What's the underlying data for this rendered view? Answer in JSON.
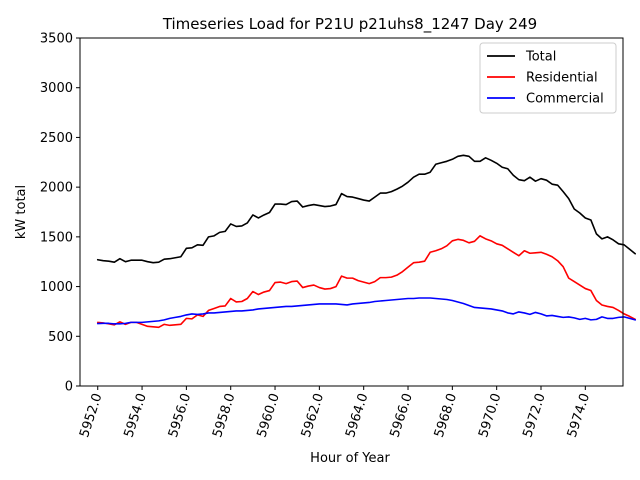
{
  "chart_data": {
    "type": "line",
    "title": "Timeseries Load for P21U p21uhs8_1247  Day 249",
    "xlabel": "Hour of Year",
    "ylabel": "kW total",
    "xlim": [
      5951.2,
      5975.7
    ],
    "ylim": [
      0,
      3500
    ],
    "x_start": 5952.0,
    "x_step": 0.25,
    "xticks": [
      5952,
      5954,
      5956,
      5958,
      5960,
      5962,
      5964,
      5966,
      5968,
      5970,
      5972,
      5974
    ],
    "xtick_labels": [
      "5952.0",
      "5954.0",
      "5956.0",
      "5958.0",
      "5960.0",
      "5962.0",
      "5964.0",
      "5966.0",
      "5968.0",
      "5970.0",
      "5972.0",
      "5974.0"
    ],
    "yticks": [
      0,
      500,
      1000,
      1500,
      2000,
      2500,
      3000,
      3500
    ],
    "ytick_labels": [
      "0",
      "500",
      "1000",
      "1500",
      "2000",
      "2500",
      "3000",
      "3500"
    ],
    "legend_position": "top-right",
    "series": [
      {
        "name": "Total",
        "color": "#000000",
        "values": [
          1270,
          1260,
          1255,
          1245,
          1280,
          1250,
          1265,
          1265,
          1265,
          1250,
          1240,
          1245,
          1275,
          1280,
          1290,
          1300,
          1385,
          1390,
          1420,
          1415,
          1500,
          1510,
          1545,
          1555,
          1630,
          1605,
          1610,
          1640,
          1720,
          1690,
          1720,
          1745,
          1830,
          1830,
          1825,
          1855,
          1860,
          1800,
          1815,
          1825,
          1815,
          1805,
          1810,
          1825,
          1935,
          1905,
          1900,
          1885,
          1870,
          1860,
          1900,
          1940,
          1940,
          1955,
          1980,
          2010,
          2050,
          2100,
          2130,
          2130,
          2150,
          2230,
          2245,
          2260,
          2280,
          2310,
          2320,
          2310,
          2260,
          2260,
          2295,
          2270,
          2240,
          2200,
          2185,
          2120,
          2075,
          2065,
          2100,
          2060,
          2085,
          2070,
          2030,
          2020,
          1955,
          1885,
          1780,
          1740,
          1690,
          1670,
          1530,
          1480,
          1500,
          1470,
          1430,
          1420,
          1375,
          1330
        ]
      },
      {
        "name": "Residential",
        "color": "#ff0000",
        "values": [
          640,
          635,
          625,
          615,
          645,
          620,
          640,
          640,
          620,
          600,
          595,
          590,
          620,
          610,
          615,
          620,
          680,
          675,
          715,
          700,
          760,
          780,
          800,
          805,
          880,
          845,
          850,
          880,
          950,
          920,
          945,
          960,
          1040,
          1045,
          1030,
          1050,
          1055,
          990,
          1005,
          1015,
          990,
          975,
          980,
          1000,
          1105,
          1085,
          1085,
          1060,
          1045,
          1030,
          1050,
          1090,
          1090,
          1095,
          1115,
          1150,
          1195,
          1240,
          1245,
          1255,
          1345,
          1360,
          1380,
          1410,
          1460,
          1475,
          1465,
          1440,
          1455,
          1510,
          1480,
          1460,
          1430,
          1415,
          1380,
          1345,
          1310,
          1360,
          1335,
          1340,
          1345,
          1325,
          1300,
          1260,
          1200,
          1085,
          1050,
          1015,
          980,
          960,
          860,
          815,
          800,
          790,
          760,
          725,
          700,
          670
        ]
      },
      {
        "name": "Commercial",
        "color": "#0000ff",
        "values": [
          628,
          630,
          630,
          625,
          625,
          630,
          640,
          640,
          640,
          645,
          650,
          655,
          665,
          680,
          690,
          700,
          715,
          725,
          720,
          725,
          735,
          735,
          740,
          745,
          750,
          755,
          755,
          760,
          765,
          775,
          780,
          785,
          790,
          795,
          800,
          800,
          805,
          810,
          815,
          820,
          825,
          825,
          825,
          825,
          820,
          815,
          825,
          830,
          835,
          840,
          850,
          855,
          860,
          865,
          870,
          875,
          880,
          880,
          885,
          885,
          885,
          880,
          875,
          870,
          860,
          845,
          830,
          810,
          790,
          785,
          780,
          775,
          765,
          755,
          735,
          725,
          745,
          735,
          720,
          740,
          725,
          705,
          710,
          700,
          690,
          695,
          685,
          670,
          680,
          665,
          670,
          695,
          680,
          680,
          690,
          695,
          680,
          665
        ]
      }
    ]
  }
}
